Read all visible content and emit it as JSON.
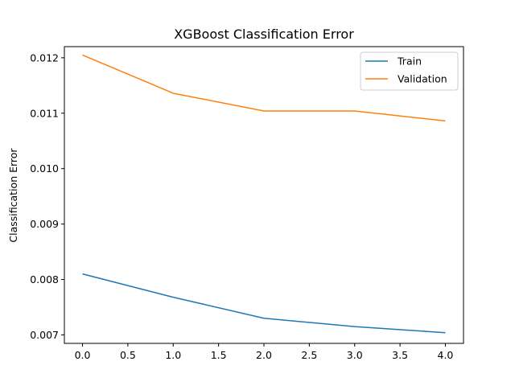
{
  "chart_data": {
    "type": "line",
    "title": "XGBoost Classification Error",
    "xlabel": "",
    "ylabel": "Classification Error",
    "x": [
      0,
      1,
      2,
      3,
      4
    ],
    "series": [
      {
        "name": "Train",
        "color": "#1f77b4",
        "values": [
          0.0081,
          0.00768,
          0.0073,
          0.00715,
          0.00704
        ]
      },
      {
        "name": "Validation",
        "color": "#ff7f0e",
        "values": [
          0.01205,
          0.01136,
          0.01104,
          0.01104,
          0.01086
        ]
      }
    ],
    "xlim": [
      -0.2,
      4.2
    ],
    "ylim": [
      0.006847,
      0.012201
    ],
    "xticks": [
      0.0,
      0.5,
      1.0,
      1.5,
      2.0,
      2.5,
      3.0,
      3.5,
      4.0
    ],
    "xtick_labels": [
      "0.0",
      "0.5",
      "1.0",
      "1.5",
      "2.0",
      "2.5",
      "3.0",
      "3.5",
      "4.0"
    ],
    "yticks": [
      0.007,
      0.008,
      0.009,
      0.01,
      0.011,
      0.012
    ],
    "ytick_labels": [
      "0.007",
      "0.008",
      "0.009",
      "0.010",
      "0.011",
      "0.012"
    ],
    "grid": false,
    "legend": "top-right"
  }
}
